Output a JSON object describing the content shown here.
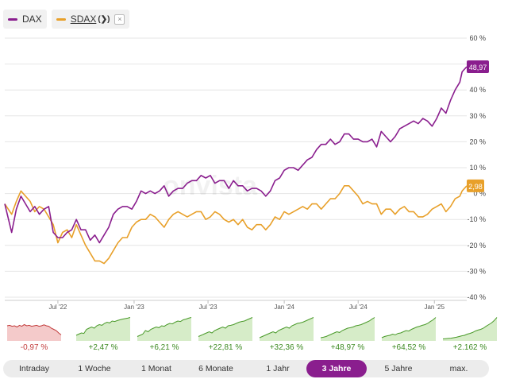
{
  "legend": {
    "dax_label": "DAX",
    "sdax_label": "SDAX",
    "sdax_chevron": "(❯)",
    "close_symbol": "×",
    "dax_color": "#8a1e8e",
    "sdax_color": "#e8a02a"
  },
  "chart_data": {
    "type": "line",
    "ylim": [
      -40,
      60
    ],
    "yticks": [
      60,
      50,
      40,
      30,
      20,
      10,
      0,
      -10,
      -20,
      -30,
      -40
    ],
    "ytick_labels": [
      "60 %",
      "50 %",
      "40 %",
      "30 %",
      "20 %",
      "10 %",
      "0 %",
      "-10 %",
      "-20 %",
      "-30 %",
      "-40 %"
    ],
    "xlim": [
      0,
      100
    ],
    "xticks": [
      {
        "x": 11.5,
        "label": "Jul '22"
      },
      {
        "x": 28.0,
        "label": "Jan '23"
      },
      {
        "x": 44.0,
        "label": "Jul '23"
      },
      {
        "x": 60.5,
        "label": "Jan '24"
      },
      {
        "x": 76.5,
        "label": "Jul '24"
      },
      {
        "x": 93.0,
        "label": "Jan '25"
      }
    ],
    "grid": true,
    "series": [
      {
        "name": "DAX",
        "color": "#8a1e8e",
        "last_label": "48,97",
        "points": [
          [
            0,
            -4
          ],
          [
            1.5,
            -15
          ],
          [
            2.5,
            -6
          ],
          [
            3.5,
            -1
          ],
          [
            4.5,
            -4
          ],
          [
            5.5,
            -7
          ],
          [
            6.5,
            -5
          ],
          [
            7.5,
            -8
          ],
          [
            8.5,
            -6
          ],
          [
            9.5,
            -5
          ],
          [
            10.5,
            -15
          ],
          [
            11.5,
            -17
          ],
          [
            12.5,
            -17
          ],
          [
            13.5,
            -15
          ],
          [
            14.5,
            -14
          ],
          [
            15.5,
            -10
          ],
          [
            16.5,
            -14
          ],
          [
            17.5,
            -14
          ],
          [
            18.5,
            -18
          ],
          [
            19.5,
            -16
          ],
          [
            20.5,
            -19
          ],
          [
            21.5,
            -16
          ],
          [
            22.5,
            -13
          ],
          [
            23.5,
            -8
          ],
          [
            24.5,
            -6
          ],
          [
            25.5,
            -5
          ],
          [
            26.5,
            -5
          ],
          [
            27.5,
            -6
          ],
          [
            28.5,
            -3
          ],
          [
            29.5,
            1
          ],
          [
            30.5,
            0
          ],
          [
            31.5,
            1
          ],
          [
            32.5,
            0
          ],
          [
            33.5,
            1
          ],
          [
            34.5,
            3
          ],
          [
            35.5,
            -1
          ],
          [
            36.5,
            1
          ],
          [
            37.5,
            2
          ],
          [
            38.5,
            2
          ],
          [
            39.5,
            4
          ],
          [
            40.5,
            5
          ],
          [
            41.5,
            5
          ],
          [
            42.5,
            7
          ],
          [
            43.5,
            6
          ],
          [
            44.5,
            7
          ],
          [
            45.5,
            4
          ],
          [
            46.5,
            5
          ],
          [
            47.5,
            5
          ],
          [
            48.5,
            2
          ],
          [
            49.5,
            5
          ],
          [
            50.5,
            3
          ],
          [
            51.5,
            3
          ],
          [
            52.5,
            1
          ],
          [
            53.5,
            2
          ],
          [
            54.5,
            2
          ],
          [
            55.5,
            1
          ],
          [
            56.5,
            -1
          ],
          [
            57.5,
            1
          ],
          [
            58.5,
            5
          ],
          [
            59.5,
            6
          ],
          [
            60.5,
            9
          ],
          [
            61.5,
            10
          ],
          [
            62.5,
            10
          ],
          [
            63.5,
            9
          ],
          [
            64.5,
            11
          ],
          [
            65.5,
            13
          ],
          [
            66.5,
            14
          ],
          [
            67.5,
            17
          ],
          [
            68.5,
            19
          ],
          [
            69.5,
            19
          ],
          [
            70.5,
            21
          ],
          [
            71.5,
            19
          ],
          [
            72.5,
            20
          ],
          [
            73.5,
            23
          ],
          [
            74.5,
            23
          ],
          [
            75.5,
            21
          ],
          [
            76.5,
            21
          ],
          [
            77.5,
            20
          ],
          [
            78.5,
            20
          ],
          [
            79.5,
            21
          ],
          [
            80.5,
            18
          ],
          [
            81.5,
            24
          ],
          [
            82.5,
            22
          ],
          [
            83.5,
            20
          ],
          [
            84.5,
            22
          ],
          [
            85.5,
            25
          ],
          [
            86.5,
            26
          ],
          [
            87.5,
            27
          ],
          [
            88.5,
            28
          ],
          [
            89.5,
            27
          ],
          [
            90.5,
            29
          ],
          [
            91.5,
            28
          ],
          [
            92.5,
            26
          ],
          [
            93.5,
            29
          ],
          [
            94.5,
            33
          ],
          [
            95.5,
            31
          ],
          [
            96.5,
            36
          ],
          [
            97.5,
            40
          ],
          [
            98.5,
            43
          ],
          [
            99,
            47
          ],
          [
            100,
            48.97
          ]
        ]
      },
      {
        "name": "SDAX",
        "color": "#e8a02a",
        "last_label": "2,98",
        "points": [
          [
            0,
            -4
          ],
          [
            1.5,
            -8
          ],
          [
            2.5,
            -3
          ],
          [
            3.5,
            1
          ],
          [
            4.5,
            -1
          ],
          [
            5.5,
            -3
          ],
          [
            6.5,
            -7
          ],
          [
            7.5,
            -5
          ],
          [
            8.5,
            -6
          ],
          [
            9.5,
            -9
          ],
          [
            10.5,
            -12
          ],
          [
            11.5,
            -19
          ],
          [
            12.5,
            -15
          ],
          [
            13.5,
            -14
          ],
          [
            14.5,
            -17
          ],
          [
            15.5,
            -12
          ],
          [
            16.5,
            -16
          ],
          [
            17.5,
            -20
          ],
          [
            18.5,
            -23
          ],
          [
            19.5,
            -26
          ],
          [
            20.5,
            -26
          ],
          [
            21.5,
            -27
          ],
          [
            22.5,
            -25
          ],
          [
            23.5,
            -22
          ],
          [
            24.5,
            -19
          ],
          [
            25.5,
            -17
          ],
          [
            26.5,
            -17
          ],
          [
            27.5,
            -13
          ],
          [
            28.5,
            -11
          ],
          [
            29.5,
            -10
          ],
          [
            30.5,
            -10
          ],
          [
            31.5,
            -8
          ],
          [
            32.5,
            -9
          ],
          [
            33.5,
            -11
          ],
          [
            34.5,
            -13
          ],
          [
            35.5,
            -10
          ],
          [
            36.5,
            -8
          ],
          [
            37.5,
            -7
          ],
          [
            38.5,
            -8
          ],
          [
            39.5,
            -9
          ],
          [
            40.5,
            -8
          ],
          [
            41.5,
            -7
          ],
          [
            42.5,
            -7
          ],
          [
            43.5,
            -10
          ],
          [
            44.5,
            -9
          ],
          [
            45.5,
            -7
          ],
          [
            46.5,
            -8
          ],
          [
            47.5,
            -10
          ],
          [
            48.5,
            -11
          ],
          [
            49.5,
            -10
          ],
          [
            50.5,
            -12
          ],
          [
            51.5,
            -10
          ],
          [
            52.5,
            -13
          ],
          [
            53.5,
            -14
          ],
          [
            54.5,
            -12
          ],
          [
            55.5,
            -12
          ],
          [
            56.5,
            -14
          ],
          [
            57.5,
            -12
          ],
          [
            58.5,
            -9
          ],
          [
            59.5,
            -10
          ],
          [
            60.5,
            -7
          ],
          [
            61.5,
            -8
          ],
          [
            62.5,
            -7
          ],
          [
            63.5,
            -6
          ],
          [
            64.5,
            -5
          ],
          [
            65.5,
            -6
          ],
          [
            66.5,
            -4
          ],
          [
            67.5,
            -4
          ],
          [
            68.5,
            -6
          ],
          [
            69.5,
            -4
          ],
          [
            70.5,
            -2
          ],
          [
            71.5,
            -2
          ],
          [
            72.5,
            0
          ],
          [
            73.5,
            3
          ],
          [
            74.5,
            3
          ],
          [
            75.5,
            1
          ],
          [
            76.5,
            -1
          ],
          [
            77.5,
            -4
          ],
          [
            78.5,
            -3
          ],
          [
            79.5,
            -4
          ],
          [
            80.5,
            -4
          ],
          [
            81.5,
            -8
          ],
          [
            82.5,
            -6
          ],
          [
            83.5,
            -6
          ],
          [
            84.5,
            -8
          ],
          [
            85.5,
            -6
          ],
          [
            86.5,
            -5
          ],
          [
            87.5,
            -7
          ],
          [
            88.5,
            -7
          ],
          [
            89.5,
            -9
          ],
          [
            90.5,
            -9
          ],
          [
            91.5,
            -8
          ],
          [
            92.5,
            -6
          ],
          [
            93.5,
            -5
          ],
          [
            94.5,
            -4
          ],
          [
            95.5,
            -7
          ],
          [
            96.5,
            -5
          ],
          [
            97.5,
            -2
          ],
          [
            98.5,
            -1
          ],
          [
            99,
            1
          ],
          [
            100,
            2.98
          ]
        ]
      }
    ]
  },
  "watermark": "onvista",
  "minis": [
    {
      "value": "-0,97 %",
      "negative": true,
      "shape": [
        0.6,
        0.62,
        0.58,
        0.6,
        0.55,
        0.62,
        0.58,
        0.65,
        0.6,
        0.62,
        0.58,
        0.6,
        0.62,
        0.58,
        0.6,
        0.64,
        0.6,
        0.58,
        0.5,
        0.45,
        0.4,
        0.3,
        0.22
      ]
    },
    {
      "value": "+2,47 %",
      "negative": false,
      "shape": [
        0.2,
        0.25,
        0.3,
        0.28,
        0.45,
        0.5,
        0.55,
        0.5,
        0.6,
        0.65,
        0.62,
        0.7,
        0.75,
        0.72,
        0.8,
        0.78,
        0.82,
        0.85,
        0.88,
        0.9,
        0.92,
        0.95
      ]
    },
    {
      "value": "+6,21 %",
      "negative": false,
      "shape": [
        0.15,
        0.2,
        0.25,
        0.4,
        0.35,
        0.45,
        0.5,
        0.55,
        0.52,
        0.6,
        0.58,
        0.65,
        0.7,
        0.68,
        0.75,
        0.8,
        0.78,
        0.85,
        0.88,
        0.92,
        0.95
      ]
    },
    {
      "value": "+22,81 %",
      "negative": false,
      "shape": [
        0.15,
        0.2,
        0.25,
        0.3,
        0.35,
        0.3,
        0.4,
        0.45,
        0.5,
        0.55,
        0.5,
        0.6,
        0.62,
        0.65,
        0.7,
        0.75,
        0.78,
        0.8,
        0.85,
        0.9,
        0.95
      ]
    },
    {
      "value": "+32,36 %",
      "negative": false,
      "shape": [
        0.1,
        0.15,
        0.2,
        0.25,
        0.3,
        0.35,
        0.3,
        0.4,
        0.45,
        0.5,
        0.55,
        0.5,
        0.6,
        0.65,
        0.7,
        0.72,
        0.75,
        0.8,
        0.85,
        0.9,
        0.95
      ]
    },
    {
      "value": "+48,97 %",
      "negative": false,
      "shape": [
        0.1,
        0.12,
        0.15,
        0.2,
        0.25,
        0.3,
        0.35,
        0.32,
        0.4,
        0.45,
        0.5,
        0.52,
        0.55,
        0.6,
        0.62,
        0.65,
        0.7,
        0.75,
        0.8,
        0.88,
        0.95
      ]
    },
    {
      "value": "+64,52 %",
      "negative": false,
      "shape": [
        0.1,
        0.15,
        0.18,
        0.2,
        0.25,
        0.22,
        0.28,
        0.3,
        0.35,
        0.4,
        0.38,
        0.45,
        0.5,
        0.55,
        0.58,
        0.62,
        0.65,
        0.7,
        0.78,
        0.85,
        0.95
      ]
    },
    {
      "value": "+2.162 %",
      "negative": false,
      "shape": [
        0.05,
        0.06,
        0.07,
        0.08,
        0.1,
        0.12,
        0.15,
        0.18,
        0.2,
        0.25,
        0.28,
        0.32,
        0.38,
        0.42,
        0.45,
        0.5,
        0.58,
        0.65,
        0.72,
        0.82,
        0.95
      ]
    }
  ],
  "tabs": [
    {
      "label": "Intraday",
      "active": false
    },
    {
      "label": "1 Woche",
      "active": false
    },
    {
      "label": "1 Monat",
      "active": false
    },
    {
      "label": "6 Monate",
      "active": false
    },
    {
      "label": "1 Jahr",
      "active": false
    },
    {
      "label": "3 Jahre",
      "active": true
    },
    {
      "label": "5 Jahre",
      "active": false
    },
    {
      "label": "max.",
      "active": false
    }
  ]
}
